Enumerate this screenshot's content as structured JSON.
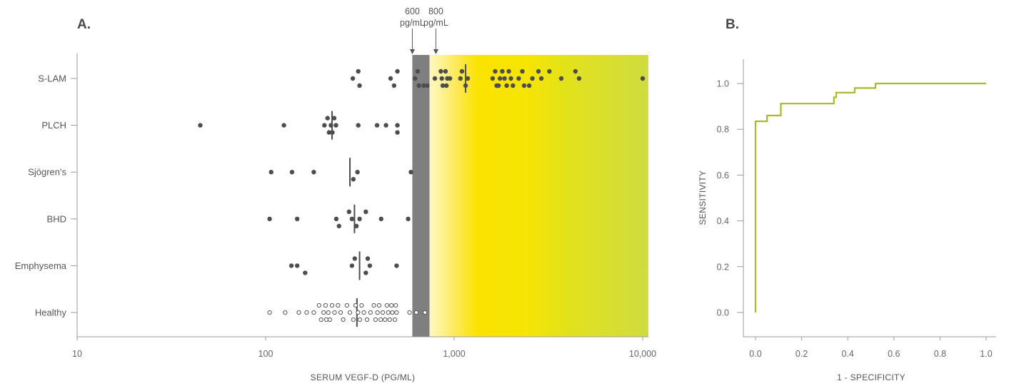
{
  "chart_data": [
    {
      "panel": "A.",
      "type": "scatter",
      "orientation": "horizontal-dot-plot",
      "xlabel": "SERUM VEGF-D (PG/ML)",
      "xscale": "log",
      "xlim": [
        10,
        11000
      ],
      "xticks": [
        {
          "value": 10,
          "label": "10"
        },
        {
          "value": 100,
          "label": "100"
        },
        {
          "value": 1000,
          "label": "1,000"
        },
        {
          "value": 10000,
          "label": "10,000"
        }
      ],
      "cutoffs": [
        {
          "value": 600,
          "line1": "600",
          "line2": "pg/mL"
        },
        {
          "value": 800,
          "line1": "800",
          "line2": "pg/mL"
        }
      ],
      "gray_band": [
        600,
        740
      ],
      "gradient_region": {
        "from": 740,
        "to": 11000,
        "colors": [
          "#fff3a6",
          "#fbe500",
          "#f7e600",
          "#d3df3c"
        ]
      },
      "colors": {
        "filled_dot": "#4d4d4d",
        "open_dot": "#555555",
        "median_line": "#4d4d4d",
        "axis": "#999999"
      },
      "categories": [
        "S-LAM",
        "PLCH",
        "Sjögren's",
        "BHD",
        "Emphysema",
        "Healthy"
      ],
      "series": [
        {
          "name": "S-LAM",
          "marker": "filled",
          "median": 1150,
          "points": [
            [
              290,
              0
            ],
            [
              310,
              -1
            ],
            [
              315,
              1
            ],
            [
              460,
              0
            ],
            [
              480,
              1
            ],
            [
              500,
              -1
            ],
            [
              620,
              0
            ],
            [
              640,
              -1
            ],
            [
              650,
              1
            ],
            [
              690,
              1
            ],
            [
              720,
              1
            ],
            [
              790,
              0
            ],
            [
              850,
              -1
            ],
            [
              860,
              0
            ],
            [
              870,
              1
            ],
            [
              900,
              -1
            ],
            [
              910,
              1
            ],
            [
              920,
              0
            ],
            [
              950,
              0
            ],
            [
              1080,
              0
            ],
            [
              1100,
              -1
            ],
            [
              1150,
              1
            ],
            [
              1180,
              0
            ],
            [
              1600,
              0
            ],
            [
              1650,
              -1
            ],
            [
              1680,
              1
            ],
            [
              1720,
              1
            ],
            [
              1750,
              0
            ],
            [
              1800,
              -1
            ],
            [
              1850,
              0
            ],
            [
              1900,
              1
            ],
            [
              1950,
              -1
            ],
            [
              2000,
              0
            ],
            [
              2050,
              1
            ],
            [
              2200,
              0
            ],
            [
              2300,
              -1
            ],
            [
              2350,
              1
            ],
            [
              2500,
              1
            ],
            [
              2600,
              0
            ],
            [
              2800,
              -1
            ],
            [
              2900,
              0
            ],
            [
              3200,
              -1
            ],
            [
              3700,
              0
            ],
            [
              4400,
              -1
            ],
            [
              4600,
              0
            ],
            [
              10000,
              0
            ]
          ]
        },
        {
          "name": "PLCH",
          "marker": "filled",
          "median": 225,
          "points": [
            [
              45,
              0
            ],
            [
              125,
              0
            ],
            [
              205,
              0
            ],
            [
              213,
              -1
            ],
            [
              217,
              1
            ],
            [
              222,
              0
            ],
            [
              226,
              1
            ],
            [
              231,
              -1
            ],
            [
              236,
              0
            ],
            [
              310,
              0
            ],
            [
              390,
              0
            ],
            [
              435,
              0
            ],
            [
              500,
              0
            ],
            [
              500,
              1
            ]
          ]
        },
        {
          "name": "Sjögren's",
          "marker": "filled",
          "median": 280,
          "points": [
            [
              107,
              0
            ],
            [
              138,
              0
            ],
            [
              180,
              0
            ],
            [
              292,
              1
            ],
            [
              307,
              0
            ],
            [
              590,
              0
            ]
          ]
        },
        {
          "name": "BHD",
          "marker": "filled",
          "median": 296,
          "points": [
            [
              105,
              0
            ],
            [
              147,
              0
            ],
            [
              237,
              0
            ],
            [
              245,
              1
            ],
            [
              277,
              -1
            ],
            [
              287,
              0
            ],
            [
              303,
              1
            ],
            [
              315,
              0
            ],
            [
              340,
              -1
            ],
            [
              410,
              0
            ],
            [
              570,
              0
            ]
          ]
        },
        {
          "name": "Emphysema",
          "marker": "filled",
          "median": 315,
          "points": [
            [
              137,
              0
            ],
            [
              147,
              0
            ],
            [
              162,
              1
            ],
            [
              287,
              0
            ],
            [
              297,
              -1
            ],
            [
              340,
              1
            ],
            [
              348,
              -1
            ],
            [
              357,
              0
            ],
            [
              495,
              0
            ]
          ]
        },
        {
          "name": "Healthy",
          "marker": "open",
          "median": 305,
          "points": [
            [
              105,
              0
            ],
            [
              127,
              0
            ],
            [
              150,
              0
            ],
            [
              165,
              0
            ],
            [
              180,
              0
            ],
            [
              192,
              -1
            ],
            [
              197,
              1
            ],
            [
              203,
              0
            ],
            [
              208,
              -1
            ],
            [
              210,
              1
            ],
            [
              215,
              0
            ],
            [
              219,
              1
            ],
            [
              225,
              -1
            ],
            [
              232,
              0
            ],
            [
              242,
              -1
            ],
            [
              250,
              0
            ],
            [
              258,
              1
            ],
            [
              270,
              -1
            ],
            [
              280,
              0
            ],
            [
              292,
              1
            ],
            [
              300,
              -1
            ],
            [
              309,
              0
            ],
            [
              316,
              1
            ],
            [
              323,
              -1
            ],
            [
              332,
              0
            ],
            [
              345,
              1
            ],
            [
              360,
              0
            ],
            [
              375,
              -1
            ],
            [
              383,
              1
            ],
            [
              392,
              0
            ],
            [
              400,
              -1
            ],
            [
              408,
              1
            ],
            [
              418,
              0
            ],
            [
              430,
              1
            ],
            [
              440,
              -1
            ],
            [
              447,
              0
            ],
            [
              455,
              1
            ],
            [
              465,
              -1
            ],
            [
              470,
              0
            ],
            [
              485,
              1
            ],
            [
              490,
              -1
            ],
            [
              495,
              0
            ],
            [
              580,
              0
            ],
            [
              630,
              0
            ],
            [
              700,
              0
            ]
          ]
        }
      ]
    },
    {
      "panel": "B.",
      "type": "line",
      "xlabel": "1 - SPECIFICITY",
      "ylabel": "SENSITIVITY",
      "xlim": [
        0,
        1
      ],
      "ylim": [
        0,
        1
      ],
      "xticks": [
        "0.0",
        "0.2",
        "0.4",
        "0.6",
        "0.8",
        "1.0"
      ],
      "yticks": [
        "0.0",
        "0.2",
        "0.4",
        "0.6",
        "0.8",
        "1.0"
      ],
      "colors": {
        "curve": "#a8b92a",
        "axis": "#999999"
      },
      "series": [
        {
          "x": [
            0.0,
            0.0,
            0.05,
            0.05,
            0.11,
            0.11,
            0.34,
            0.34,
            0.35,
            0.35,
            0.43,
            0.43,
            0.52,
            0.52,
            1.0
          ],
          "y": [
            0.0,
            0.835,
            0.835,
            0.86,
            0.86,
            0.912,
            0.912,
            0.94,
            0.94,
            0.96,
            0.96,
            0.98,
            0.98,
            1.0,
            1.0
          ]
        }
      ]
    }
  ]
}
